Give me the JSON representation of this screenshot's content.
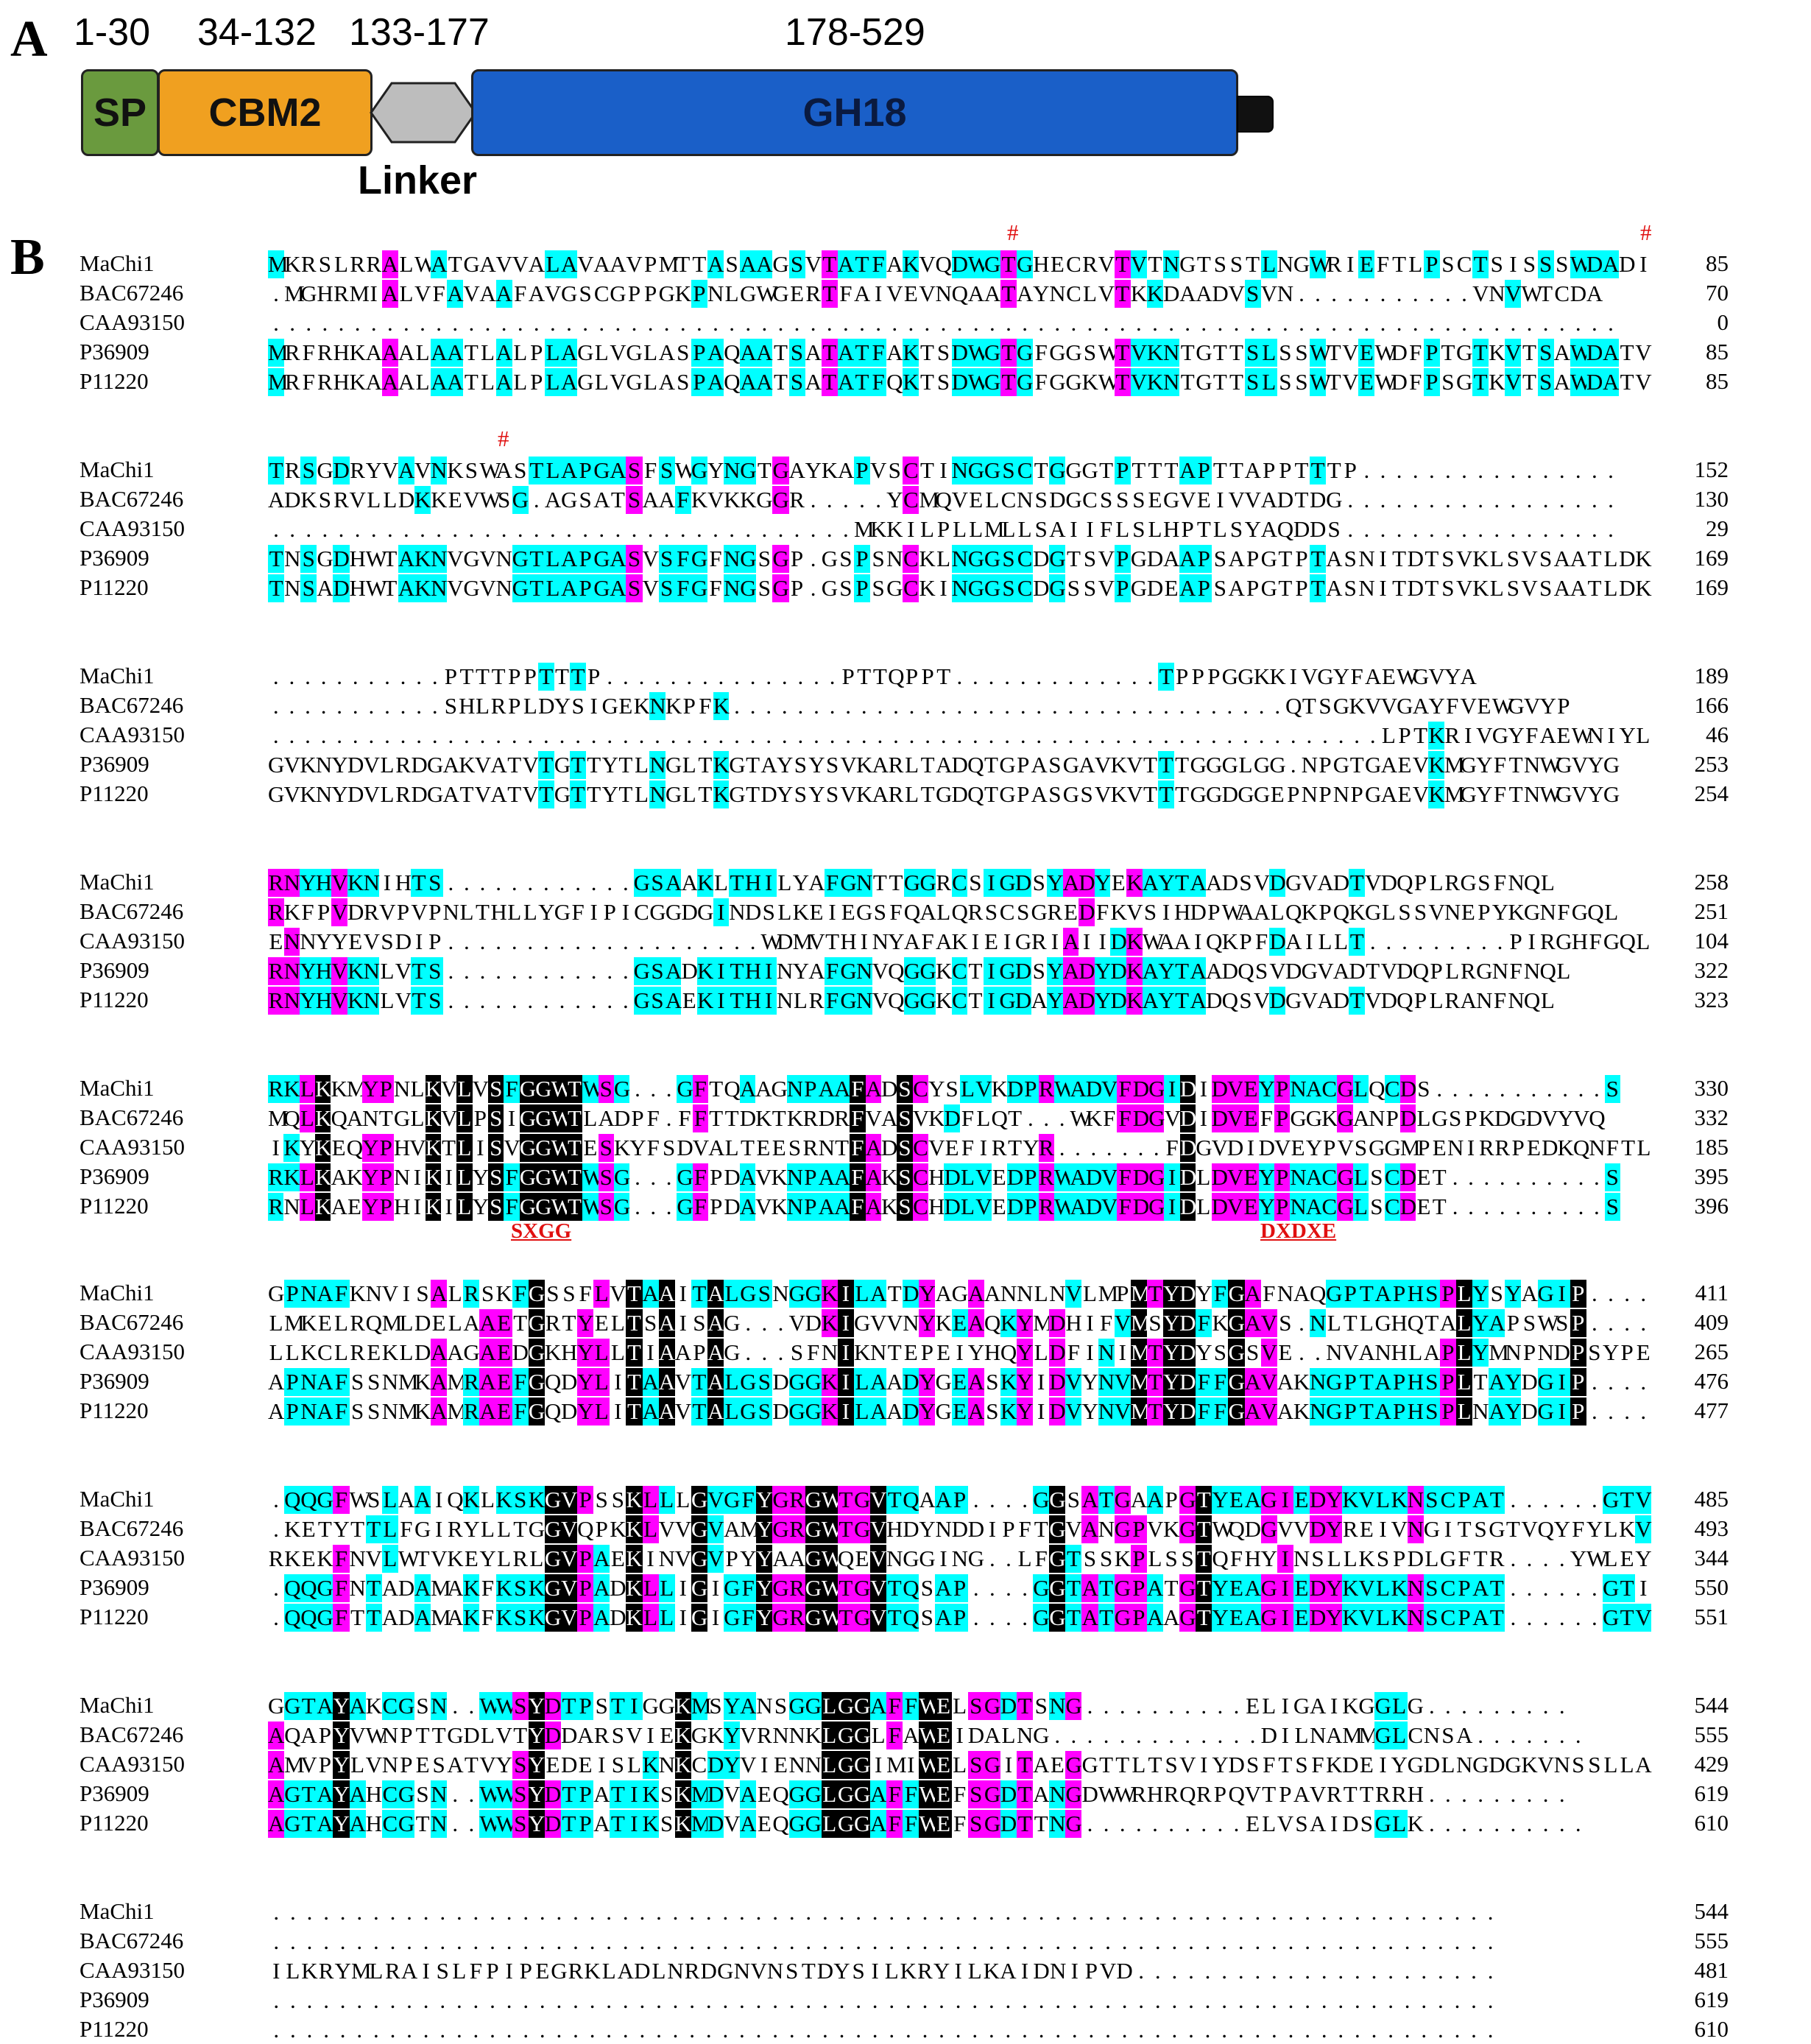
{
  "panel_a": {
    "letter": "A",
    "ranges": [
      "1-30",
      "34-132",
      "133-177",
      "178-529"
    ],
    "domains": [
      {
        "label": "SP",
        "color": "#6a9a3e"
      },
      {
        "label": "CBM2",
        "color": "#f0a020"
      },
      {
        "label": "",
        "color": "#bdbdbd"
      },
      {
        "label": "GH18",
        "color": "#1a5fc8"
      }
    ],
    "linker_label": "Linker",
    "tail_color": "#111111"
  },
  "panel_b": {
    "letter": "B",
    "sequence_names": [
      "MaChi1",
      "BAC67246",
      "CAA93150",
      "P36909",
      "P11220"
    ],
    "colors": {
      "identical": "#000000",
      "high": "#ff00ff",
      "low": "#00ffff"
    },
    "conserved_marker": "#",
    "motifs": [
      "SXGG",
      "DXDXE"
    ],
    "blocks": [
      {
        "rows": [
          "MKRSLRRALWATGAVVALAVAAVPMTTASAAGSVTATFAKVQDWGTGHECRVTVTNGTSSTLNGWRIEFTLPSCTSISSSWDADI",
          ".MGHRMIALVFAVAAFAVGSCGPPGKPNLGWGERTFAIVEVNQAATAYNCLVTKKDAADVSVN...........VNVWTCDA",
          "...................................................................................",
          "MRFRHKAAALAATLALPLAGLVGLASPAQAATSATATFAKTSDWGTGFGGSWTVKNTGTTSLSSWTVEWDFPTGTKVTSAWDATV",
          "MRFRHKAAALAATLALPLAGLVGLASPAQAATSATATFQKTSDWGTGFGGKWTVKNTGTTSLSSWTVEWDFPSGTKVTSAWDATV"
        ],
        "nums": [
          "85",
          "70",
          "0",
          "85",
          "85"
        ]
      },
      {
        "rows": [
          "TRSGDRYVAVNKSWASTLAPGASFSWGYNGTGAYKAPVSCTINGGSCTGGGTPTTTAPTTAPPTTTP................",
          "ADKSRVLLDKKEVWSG.AGSATSAAFKVKKGGR.....YCMQVELCNSDGCSSSEGVEIVVADTDG.................",
          "....................................MKKILPLLMLLSAIIFLSLHPTLSYAQDDS.................",
          "TNSGDHWTAKNVGVNGTLAPGASVSFGFNGSGP.GSPSNCKLNGGSCDGTSVPGDAAPSAPGTPTASNITDTSVKLSVSAATLDK",
          "TNSADHWTAKNVGVNGTLAPGASVSFGFNGSGP.GSPSGCKINGGSCDGSSVPGDEAPSAPGTPTASNITDTSVKLSVSAATLDK"
        ],
        "nums": [
          "152",
          "130",
          "29",
          "169",
          "169"
        ]
      },
      {
        "rows": [
          "...........PTTTPPTTTP...............PTTQPPT.............TPPPGGKKIVGYFAEWGVYA",
          "...........SHLRPLDYSIGEKNKPFK...................................QTSGKVVGAYFVEWGVYP",
          "......................................................................LPTKRIVGYFAEWNIYL",
          "GVKNYDVLRDGAKVATVTGTTYTLNGLTKGTAYSYSVKARLTADQTGPASGAVKVTTTGGGLGG.NPGTGAEVKMGYFTNWGVYG",
          "GVKNYDVLRDGATVATVTGTTYTLNGLTKGTDYSYSVKARLTGDQTGPASGSVKVTTTGGDGGEPNPNPGAEVKMGYFTNWGVYG"
        ],
        "nums": [
          "189",
          "166",
          "46",
          "253",
          "254"
        ]
      },
      {
        "rows": [
          "RNYHVKNIHTS............GSAAKLTHILYAFGNTTGGRCSIGDSYADYEKAYTAADSVDGVADTVDQPLRGSFNQL",
          "RKFPVDRVPVPNLTHLLYGFIPICGGDGINDSLKEIEGSFQALQRSCSGREDFKVSIHDPWAALQKPQKGLSSVNEPYKGNFGQL",
          "ENNYYEVSDIP....................WDMVTHINYAFAKIEIGRIAIIDKWAAIQKPFDAILLT.........PIRGHFGQL",
          "RNYHVKNLVTS............GSADKITHINYAFGNVQGGKCTIGDSYADYDKAYTAADQSVDGVADTVDQPLRGNFNQL",
          "RNYHVKNLVTS............GSAEKITHINLRFGNVQGGKCTIGDAYADYDKAYTADQSVDGVADTVDQPLRANFNQL"
        ],
        "nums": [
          "258",
          "251",
          "104",
          "322",
          "323"
        ]
      },
      {
        "rows": [
          "RKLKKMYPNLKVLVSFGGWTWSG...GFTQAAGNPAAFADSCYSLVKDPRWADVFDGIDIDVEYPNACGLQCDS...........S",
          "MQLKQANTGLKVLPSIGGWTLADPF.FFTTDKTKRDRFVASVKDFLQT...WKFFDGVDIDVEFPGGKGANPDLGSPKDGDVYVQ",
          "IKYKEQYPHVKTLISVGGWTESKYFSDVALTEESRNTFADSCVEFIRTYR.......FDGVDIDVEYPVSGGMPENIRRPEDKQNFTL",
          "RKLKAKYPNIKILYSFGGWTWSG...GFPDAVKNPAAFAKSCHDLVEDPRWADVFDGIDLDVEYPNACGLSCDET..........S",
          "RNLKAEYPHIKILYSFGGWTWSG...GFPDAVKNPAAFAKSCHDLVEDPRWADVFDGIDLDVEYPNACGLSCDET..........S"
        ],
        "nums": [
          "330",
          "332",
          "185",
          "395",
          "396"
        ]
      },
      {
        "rows": [
          "GPNAFKNVISALRSKFGSSFLVTAAITALGSNGGKILATDYAGAANNLNVLMPMTYDYFGAFNAQGPTAPHSPLYSYAGIP....",
          "LMKELRQMLDELAAETGRTYELTSAISAG...VDKIGVVNYKEAQKYMDHIFVMSYDFKGAVS.NLTLGHQTALYAPSWSP....",
          "LLKCLREKLDAAGAEDGKHYLLTIAAPAG...SFNIKNTEPEIYHQYLDFINIMTYDYSGSVE..NVANHLAPLYMNPNDPSYPE",
          "APNAFSSNMKAMRAEFGQDYLITAAVTALGSDGGKILAADYGEASKYIDVYNVMTYDFFGAVAKNGPTAPHSPLTAYDGIP....",
          "APNAFSSNMKAMRAEFGQDYLITAAVTALGSDGGKILAADYGEASKYIDVYNVMTYDFFGAVAKNGPTAPHSPLNAYDGIP...."
        ],
        "nums": [
          "411",
          "409",
          "265",
          "476",
          "477"
        ]
      },
      {
        "rows": [
          ".QQGFWSLAAIQKLKSKGVPSSKLLLGVGFYGRGWTGVTQAAP....GGSATGAAPGTYEAGIEDYKVLKNSCPAT......GTV",
          ".KETYTTLFGIRYLLTGGVQPKKLVVGVAMYGRGWTGVHDYNDDIPFTGVANGPVKGTWQDGVVDYREIVNGITSGTVQYFYLKV",
          "RKEKFNVLWTVKEYLRLGVPAEKINVGVPYYAAGWQEVNGGING..LFGTSSKPLSSTQFHYINSLLKSPDLGFTR....YWLEY",
          ".QQGFNTADAMAKFKSKGVPADKLLIGIGFYGRGWTGVTQSAP....GGTATGPATGTYEAGIEDYKVLKNSCPAT......GTI",
          ".QQGFTTADAMAKFKSKGVPADKLLIGIGFYGRGWTGVTQSAP....GGTATGPAAGTYEAGIEDYKVLKNSCPAT......GTV"
        ],
        "nums": [
          "485",
          "493",
          "344",
          "550",
          "551"
        ]
      },
      {
        "rows": [
          "GGTAYAKCGSN..WWSYDTPSTIGGKMSYANSGGLGGAFFWELSGDTSNG..........ELIGAIKGGLG.........",
          "AQAPYVWNPTTGDLVTYDDARSVIEKGKYVRNNKLGGLFAWEIDALNG.............DILNAMMGLCNSA.......",
          "AMVPYLVNPESATVYSYEDEISLKNKCDYVIENNLGGIMIWELSGITAEGGTTLTSVIYDSFTSFKDEIYGDLNGDGKVNSSLLA",
          "AGTAYAHCGSN..WWSYDTPATIKSKMDVAEQGGLGGAFFWEFSGDTANGDWWRHRQRPQVTPAVRTTRRH.........",
          "AGTAYAHCGTN..WWSYDTPATIKSKMDVAEQGGLGGAFFWEFSGDTTNG..........ELVSAIDSGLK.........."
        ],
        "nums": [
          "544",
          "555",
          "429",
          "619",
          "610"
        ]
      },
      {
        "rows": [
          "..........................................................................",
          "..........................................................................",
          "ILKRYMLRAISLFPIPEGRKLADLNRDGNVNSTDYSILKRYILKAIDNIPVD......................",
          "..........................................................................",
          ".........................................................................."
        ],
        "nums": [
          "544",
          "555",
          "481",
          "619",
          "610"
        ]
      }
    ]
  }
}
